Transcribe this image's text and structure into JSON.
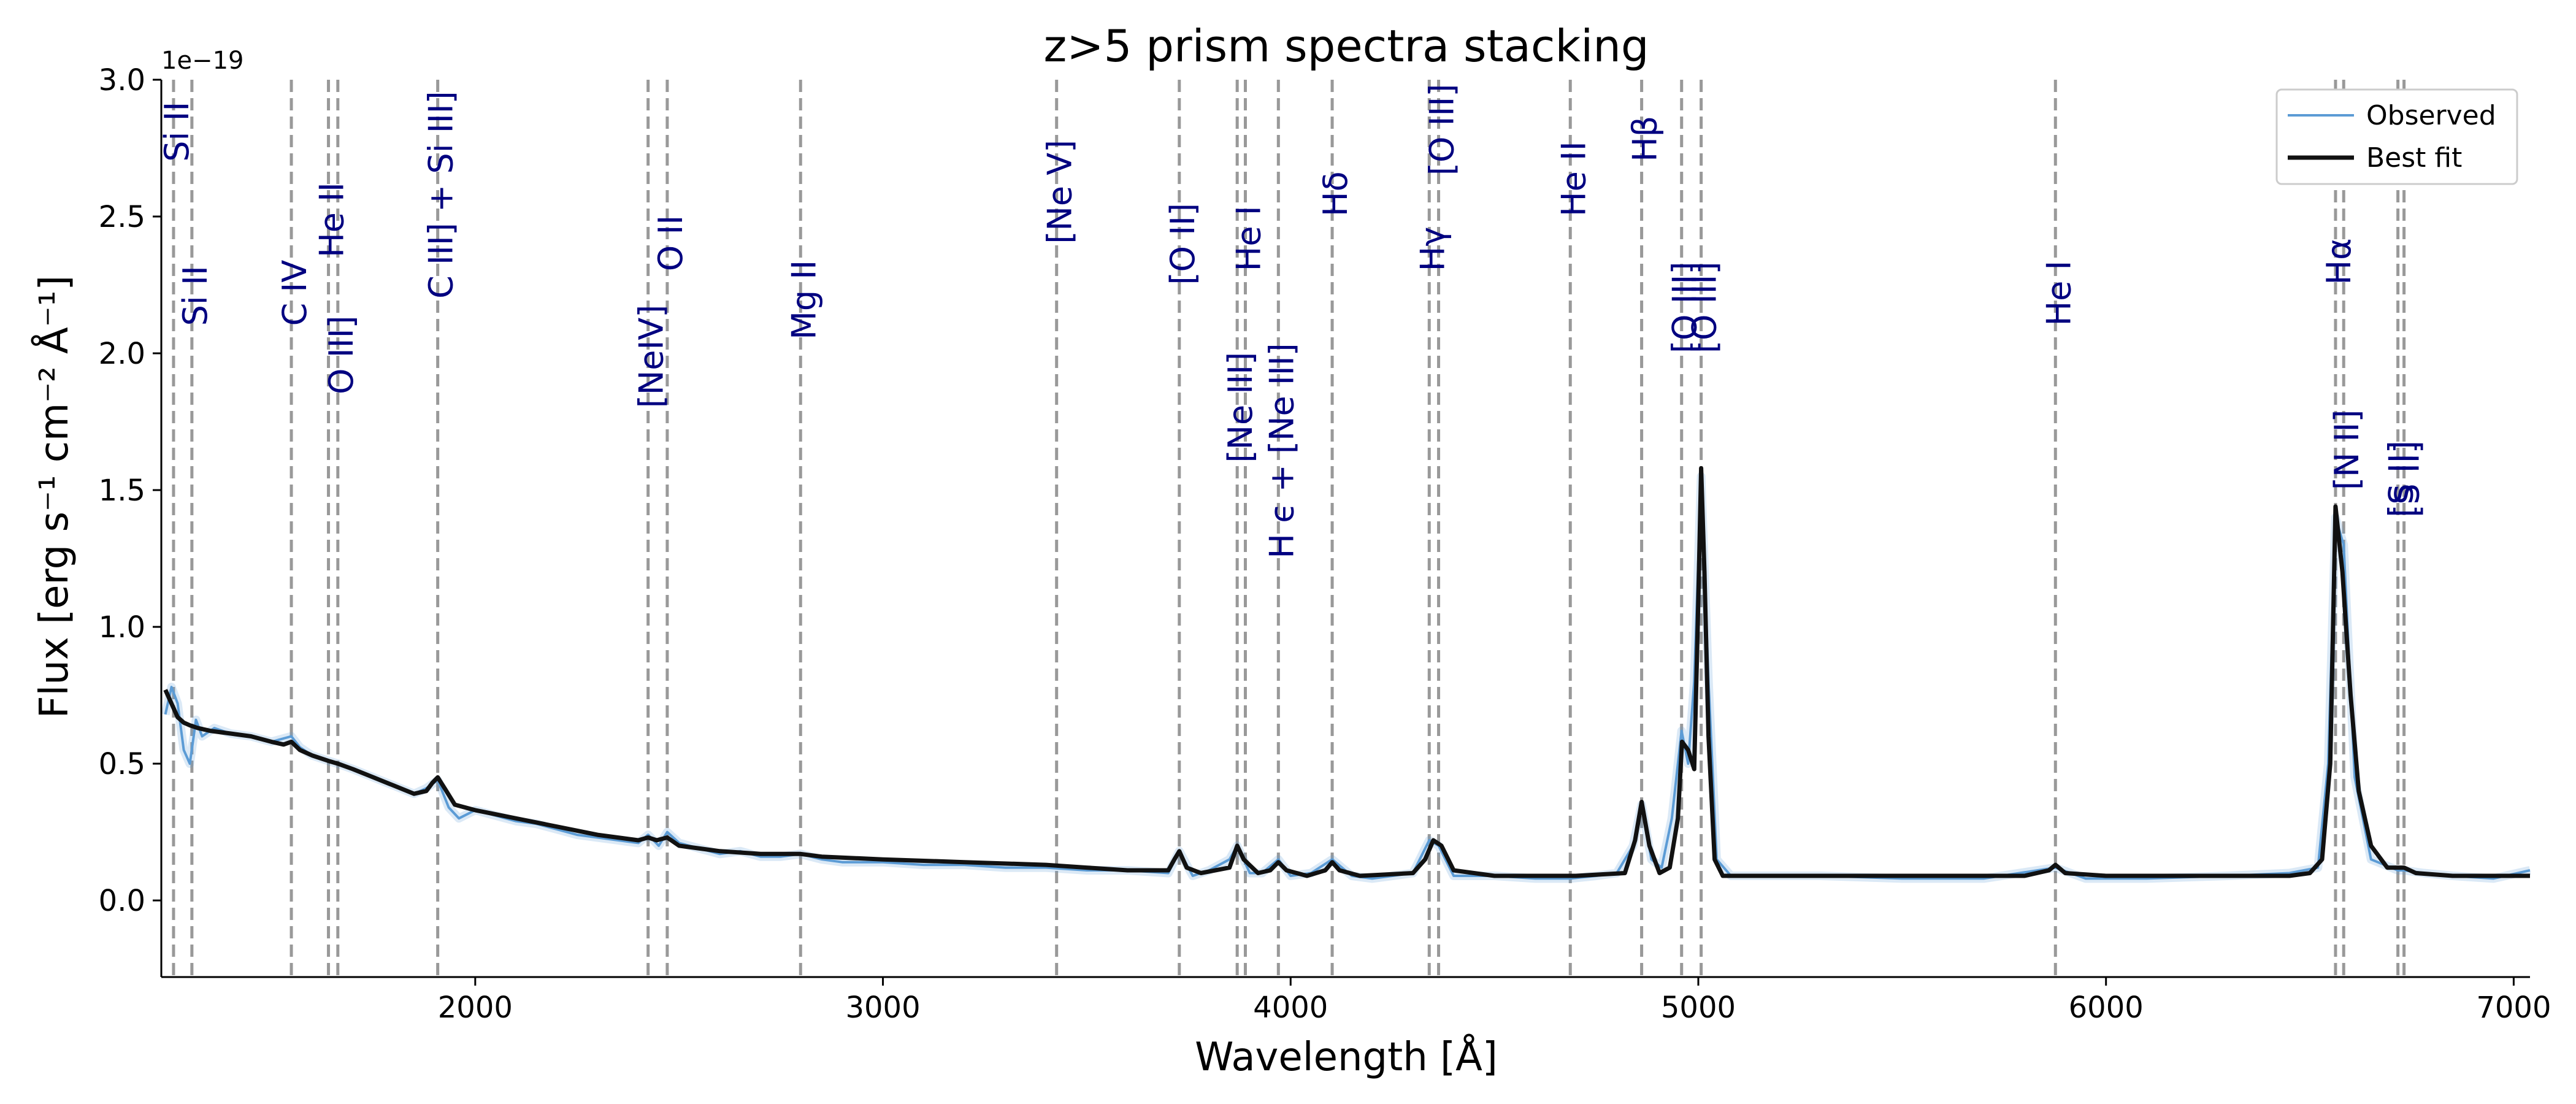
{
  "chart_data": {
    "type": "line",
    "title": "z>5 prism spectra stacking",
    "xlabel": "Wavelength [Å]",
    "ylabel": "Flux  [erg s⁻¹ cm⁻² Å⁻¹]",
    "y_offset_label": "1e−19",
    "xlim": [
      1230,
      7040
    ],
    "ylim": [
      -0.28,
      3.0
    ],
    "x_ticks": [
      2000,
      3000,
      4000,
      5000,
      6000,
      7000
    ],
    "x_tick_labels": [
      "2000",
      "3000",
      "4000",
      "5000",
      "6000",
      "7000"
    ],
    "y_ticks": [
      0.0,
      0.5,
      1.0,
      1.5,
      2.0,
      2.5,
      3.0
    ],
    "y_tick_labels": [
      "0.0",
      "0.5",
      "1.0",
      "1.5",
      "2.0",
      "2.5",
      "3.0"
    ],
    "legend": {
      "position": "top-right",
      "entries": [
        {
          "label": "Observed",
          "color": "#5b9bd5"
        },
        {
          "label": "Best fit",
          "color": "#111111"
        }
      ]
    },
    "label_color": "#000080",
    "line_color": "#999999",
    "emission_lines": [
      {
        "name": "Si II",
        "wavelength": 1260,
        "label_y": 2.7
      },
      {
        "name": "Si II",
        "wavelength": 1305,
        "label_y": 2.1
      },
      {
        "name": "C IV",
        "wavelength": 1549,
        "label_y": 2.1
      },
      {
        "name": "He II",
        "wavelength": 1640,
        "label_y": 2.35
      },
      {
        "name": "O III]",
        "wavelength": 1663,
        "label_y": 1.85
      },
      {
        "name": "C III] + Si III]",
        "wavelength": 1908,
        "label_y": 2.2
      },
      {
        "name": "[NeIV]",
        "wavelength": 2424,
        "label_y": 1.8
      },
      {
        "name": "O II",
        "wavelength": 2471,
        "label_y": 2.3
      },
      {
        "name": "Mg II",
        "wavelength": 2798,
        "label_y": 2.05
      },
      {
        "name": "[Ne V]",
        "wavelength": 3426,
        "label_y": 2.4
      },
      {
        "name": "[O II]",
        "wavelength": 3727,
        "label_y": 2.25
      },
      {
        "name": "[Ne III]",
        "wavelength": 3869,
        "label_y": 1.6
      },
      {
        "name": "He I",
        "wavelength": 3889,
        "label_y": 2.3
      },
      {
        "name": "H ϵ + [Ne III]",
        "wavelength": 3970,
        "label_y": 1.25
      },
      {
        "name": "Hδ",
        "wavelength": 4102,
        "label_y": 2.5
      },
      {
        "name": "Hγ",
        "wavelength": 4340,
        "label_y": 2.3
      },
      {
        "name": "[O III]",
        "wavelength": 4363,
        "label_y": 2.65
      },
      {
        "name": "He II",
        "wavelength": 4686,
        "label_y": 2.5
      },
      {
        "name": "Hβ",
        "wavelength": 4861,
        "label_y": 2.7
      },
      {
        "name": "[O III]",
        "wavelength": 4959,
        "label_y": 2.0
      },
      {
        "name": "[O III]",
        "wavelength": 5007,
        "label_y": 2.0
      },
      {
        "name": "He I",
        "wavelength": 5876,
        "label_y": 2.1
      },
      {
        "name": "Hα",
        "wavelength": 6563,
        "label_y": 2.25
      },
      {
        "name": "[N II]",
        "wavelength": 6583,
        "label_y": 1.5
      },
      {
        "name": "[S II]",
        "wavelength": 6716,
        "label_y": 1.4
      },
      {
        "name": "[S II]",
        "wavelength": 6731,
        "label_y": 1.4
      }
    ],
    "series": [
      {
        "name": "Observed",
        "color": "#5b9bd5",
        "x": [
          1240,
          1255,
          1270,
          1285,
          1300,
          1315,
          1330,
          1360,
          1400,
          1450,
          1500,
          1549,
          1570,
          1600,
          1640,
          1663,
          1700,
          1750,
          1800,
          1850,
          1880,
          1908,
          1935,
          1960,
          2000,
          2050,
          2100,
          2150,
          2200,
          2250,
          2300,
          2350,
          2400,
          2424,
          2450,
          2471,
          2500,
          2550,
          2600,
          2650,
          2700,
          2750,
          2798,
          2850,
          2900,
          3000,
          3100,
          3200,
          3300,
          3400,
          3500,
          3600,
          3700,
          3727,
          3760,
          3800,
          3850,
          3869,
          3900,
          3930,
          3970,
          4000,
          4050,
          4102,
          4150,
          4200,
          4250,
          4300,
          4340,
          4363,
          4400,
          4450,
          4500,
          4600,
          4686,
          4750,
          4800,
          4840,
          4861,
          4885,
          4910,
          4935,
          4959,
          4975,
          4990,
          5007,
          5025,
          5045,
          5080,
          5150,
          5300,
          5500,
          5700,
          5876,
          5950,
          6100,
          6300,
          6450,
          6520,
          6545,
          6563,
          6583,
          6610,
          6650,
          6716,
          6731,
          6780,
          6850,
          6950,
          7040
        ],
        "y": [
          0.68,
          0.78,
          0.72,
          0.55,
          0.5,
          0.66,
          0.6,
          0.63,
          0.61,
          0.6,
          0.58,
          0.6,
          0.56,
          0.53,
          0.51,
          0.5,
          0.48,
          0.45,
          0.42,
          0.39,
          0.41,
          0.44,
          0.34,
          0.3,
          0.33,
          0.31,
          0.29,
          0.28,
          0.26,
          0.24,
          0.23,
          0.22,
          0.21,
          0.24,
          0.2,
          0.25,
          0.21,
          0.19,
          0.17,
          0.18,
          0.16,
          0.16,
          0.17,
          0.15,
          0.14,
          0.14,
          0.13,
          0.13,
          0.12,
          0.12,
          0.11,
          0.11,
          0.1,
          0.18,
          0.09,
          0.11,
          0.15,
          0.2,
          0.1,
          0.1,
          0.15,
          0.09,
          0.1,
          0.15,
          0.09,
          0.08,
          0.09,
          0.1,
          0.22,
          0.2,
          0.09,
          0.09,
          0.09,
          0.08,
          0.08,
          0.09,
          0.1,
          0.2,
          0.35,
          0.15,
          0.12,
          0.3,
          0.62,
          0.5,
          0.8,
          1.55,
          0.8,
          0.15,
          0.09,
          0.09,
          0.09,
          0.08,
          0.08,
          0.12,
          0.08,
          0.08,
          0.09,
          0.1,
          0.12,
          0.5,
          1.4,
          1.3,
          0.45,
          0.15,
          0.11,
          0.11,
          0.1,
          0.09,
          0.08,
          0.11
        ]
      },
      {
        "name": "Best fit",
        "color": "#111111",
        "x": [
          1240,
          1255,
          1270,
          1285,
          1300,
          1320,
          1350,
          1400,
          1450,
          1500,
          1530,
          1549,
          1570,
          1600,
          1640,
          1663,
          1700,
          1750,
          1800,
          1850,
          1880,
          1895,
          1908,
          1925,
          1950,
          2000,
          2100,
          2200,
          2300,
          2400,
          2424,
          2445,
          2471,
          2500,
          2600,
          2700,
          2798,
          2850,
          3000,
          3200,
          3400,
          3500,
          3600,
          3700,
          3715,
          3727,
          3745,
          3780,
          3850,
          3869,
          3885,
          3920,
          3950,
          3970,
          3990,
          4040,
          4085,
          4102,
          4120,
          4170,
          4300,
          4330,
          4350,
          4370,
          4400,
          4500,
          4700,
          4820,
          4845,
          4861,
          4880,
          4905,
          4930,
          4950,
          4960,
          4975,
          4990,
          5000,
          5007,
          5015,
          5025,
          5040,
          5060,
          5150,
          5400,
          5800,
          5860,
          5876,
          5900,
          6000,
          6300,
          6450,
          6500,
          6530,
          6550,
          6563,
          6580,
          6600,
          6620,
          6650,
          6690,
          6716,
          6731,
          6760,
          6850,
          7040
        ],
        "y": [
          0.77,
          0.72,
          0.67,
          0.65,
          0.64,
          0.63,
          0.62,
          0.61,
          0.6,
          0.58,
          0.57,
          0.58,
          0.55,
          0.53,
          0.51,
          0.5,
          0.48,
          0.45,
          0.42,
          0.39,
          0.4,
          0.43,
          0.45,
          0.41,
          0.35,
          0.33,
          0.3,
          0.27,
          0.24,
          0.22,
          0.23,
          0.22,
          0.23,
          0.2,
          0.18,
          0.17,
          0.17,
          0.16,
          0.15,
          0.14,
          0.13,
          0.12,
          0.11,
          0.11,
          0.15,
          0.18,
          0.12,
          0.1,
          0.12,
          0.2,
          0.15,
          0.1,
          0.11,
          0.14,
          0.11,
          0.09,
          0.11,
          0.14,
          0.11,
          0.09,
          0.1,
          0.15,
          0.22,
          0.2,
          0.11,
          0.09,
          0.09,
          0.1,
          0.22,
          0.36,
          0.2,
          0.1,
          0.12,
          0.3,
          0.58,
          0.55,
          0.48,
          1.1,
          1.58,
          1.2,
          0.6,
          0.15,
          0.09,
          0.09,
          0.09,
          0.09,
          0.11,
          0.13,
          0.1,
          0.09,
          0.09,
          0.09,
          0.1,
          0.15,
          0.5,
          1.44,
          1.2,
          0.75,
          0.4,
          0.2,
          0.12,
          0.12,
          0.12,
          0.1,
          0.09,
          0.09
        ]
      }
    ]
  }
}
